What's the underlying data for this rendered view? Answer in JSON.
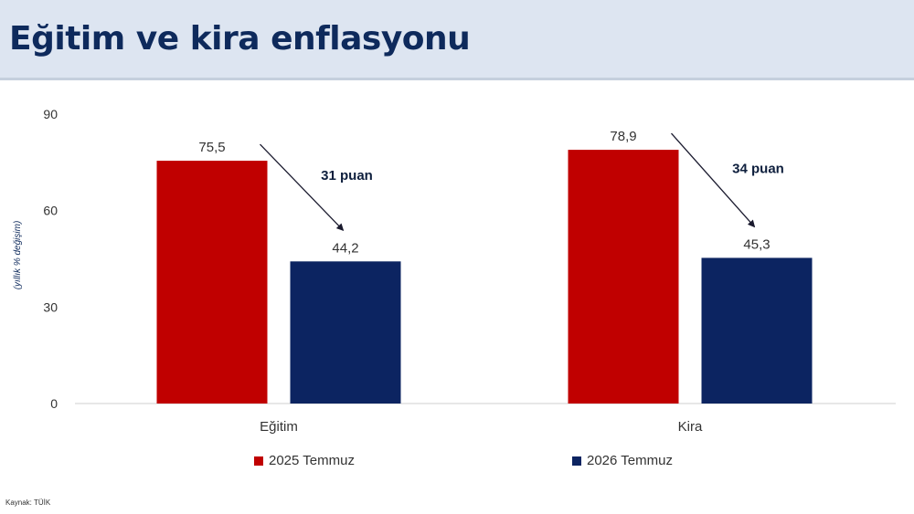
{
  "title": "Eğitim ve kira enflasyonu",
  "source": "Kaynak: TÜİK",
  "chart_data": {
    "type": "bar",
    "categories": [
      "Eğitim",
      "Kira"
    ],
    "series": [
      {
        "name": "2025 Temmuz",
        "values": [
          75.5,
          78.9
        ],
        "labels": [
          "75,5",
          "78,9"
        ],
        "color": "#c00000"
      },
      {
        "name": "2026 Temmuz",
        "values": [
          44.2,
          45.3
        ],
        "labels": [
          "44,2",
          "45,3"
        ],
        "color": "#0c2461"
      }
    ],
    "ylabel": "(yıllık % değişim)",
    "ylim": [
      0,
      90
    ],
    "yticks": [
      "0",
      "30",
      "60",
      "90"
    ],
    "annotations": [
      "31 puan",
      "34 puan"
    ],
    "legend_position": "bottom",
    "grid": false
  }
}
